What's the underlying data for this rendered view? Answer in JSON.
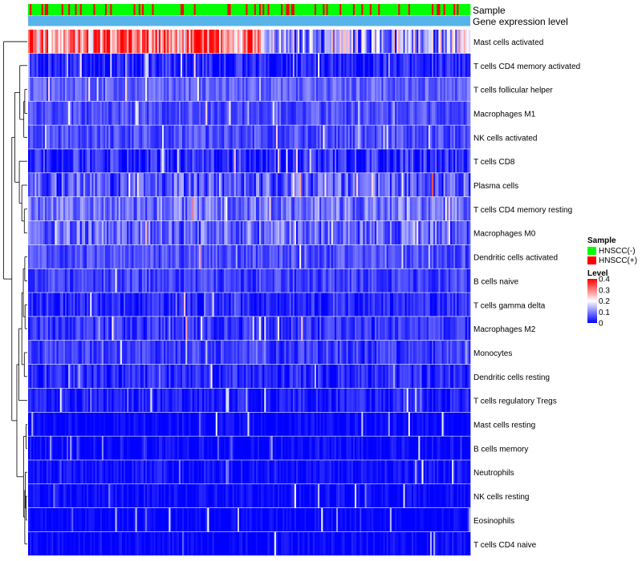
{
  "chart_data": {
    "type": "heatmap",
    "title": "",
    "rows": [
      {
        "name": "Mast cells activated",
        "mean": 0.3,
        "spread": 0.14
      },
      {
        "name": "T cells CD4 memory activated",
        "mean": 0.025,
        "spread": 0.05
      },
      {
        "name": "T cells follicular helper",
        "mean": 0.075,
        "spread": 0.04
      },
      {
        "name": "Macrophages M1",
        "mean": 0.06,
        "spread": 0.04
      },
      {
        "name": "NK cells activated",
        "mean": 0.06,
        "spread": 0.04
      },
      {
        "name": "T cells CD8",
        "mean": 0.03,
        "spread": 0.06
      },
      {
        "name": "Plasma cells",
        "mean": 0.07,
        "spread": 0.07
      },
      {
        "name": "T cells CD4 memory resting",
        "mean": 0.09,
        "spread": 0.06
      },
      {
        "name": "Macrophages M0",
        "mean": 0.08,
        "spread": 0.07
      },
      {
        "name": "Dendritic cells activated",
        "mean": 0.06,
        "spread": 0.04
      },
      {
        "name": "B cells naive",
        "mean": 0.05,
        "spread": 0.04
      },
      {
        "name": "T cells gamma delta",
        "mean": 0.03,
        "spread": 0.04
      },
      {
        "name": "Macrophages M2",
        "mean": 0.04,
        "spread": 0.04
      },
      {
        "name": "Monocytes",
        "mean": 0.045,
        "spread": 0.04
      },
      {
        "name": "Dendritic cells resting",
        "mean": 0.03,
        "spread": 0.04
      },
      {
        "name": "T cells regulatory  Tregs",
        "mean": 0.02,
        "spread": 0.035
      },
      {
        "name": "Mast cells resting",
        "mean": 0.003,
        "spread": 0.025
      },
      {
        "name": "B cells memory",
        "mean": 0.004,
        "spread": 0.03
      },
      {
        "name": "Neutrophils",
        "mean": 0.01,
        "spread": 0.03
      },
      {
        "name": "NK cells resting",
        "mean": 0.006,
        "spread": 0.025
      },
      {
        "name": "Eosinophils",
        "mean": 0.003,
        "spread": 0.02
      },
      {
        "name": "T cells CD4 naive",
        "mean": 0.004,
        "spread": 0.025
      }
    ],
    "n_samples": 264,
    "annotations": [
      {
        "label": "Sample",
        "values": "HNSCC(-) / HNSCC(+) per sample, mostly HNSCC(-)"
      },
      {
        "label": "Gene expression level",
        "values": "single level"
      }
    ],
    "legends": {
      "sample": {
        "title": "Sample",
        "items": [
          {
            "label": "HNSCC(-)",
            "color": "#00ff00"
          },
          {
            "label": "HNSCC(+)",
            "color": "#ff0000"
          }
        ]
      },
      "level": {
        "title": "Level",
        "ticks": [
          "0.4",
          "0.3",
          "0.2",
          "0.1",
          "0"
        ],
        "tick_values": [
          0.4,
          0.3,
          0.2,
          0.1,
          0
        ],
        "range": [
          0,
          0.4
        ],
        "colors": [
          "#0000ff",
          "#ffffff",
          "#ff0000"
        ]
      }
    },
    "colors": {
      "annotation_level": "#56b4e9",
      "positive": "#ff0000",
      "negative": "#00ff00"
    },
    "value_range": [
      0,
      0.4
    ],
    "clustering": "hierarchical (rows)"
  },
  "labels": {
    "annotation_sample": "Sample",
    "annotation_level": "Gene expression level",
    "legend_sample_title": "Sample",
    "legend_level_title": "Level"
  }
}
